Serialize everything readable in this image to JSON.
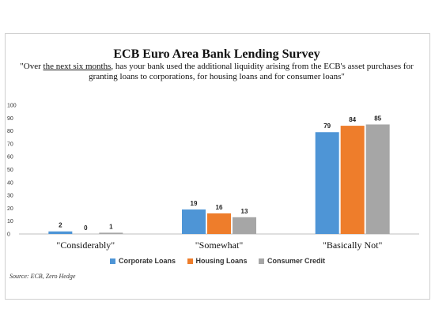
{
  "chart_data": {
    "type": "bar",
    "title": "ECB Euro Area Bank Lending Survey",
    "subtitle_pre": "\"Over ",
    "subtitle_underlined": "the next six months",
    "subtitle_post": ", has your bank used the additional liquidity arising from the ECB's asset purchases for granting loans to corporations, for housing loans and for consumer loans\"",
    "categories": [
      "\"Considerably\"",
      "\"Somewhat\"",
      "\"Basically Not\""
    ],
    "series": [
      {
        "name": "Corporate Loans",
        "color": "#4e95d6",
        "values": [
          2,
          19,
          79
        ]
      },
      {
        "name": "Housing Loans",
        "color": "#ee7d2b",
        "values": [
          0,
          16,
          84
        ]
      },
      {
        "name": "Consumer Credit",
        "color": "#a6a6a6",
        "values": [
          1,
          13,
          85
        ]
      }
    ],
    "ylim": [
      0,
      100
    ],
    "yticks": [
      0,
      10,
      20,
      30,
      40,
      50,
      60,
      70,
      80,
      90,
      100
    ],
    "grid": false,
    "legend_position": "bottom",
    "source": "Source: ECB, Zero Hedge"
  }
}
